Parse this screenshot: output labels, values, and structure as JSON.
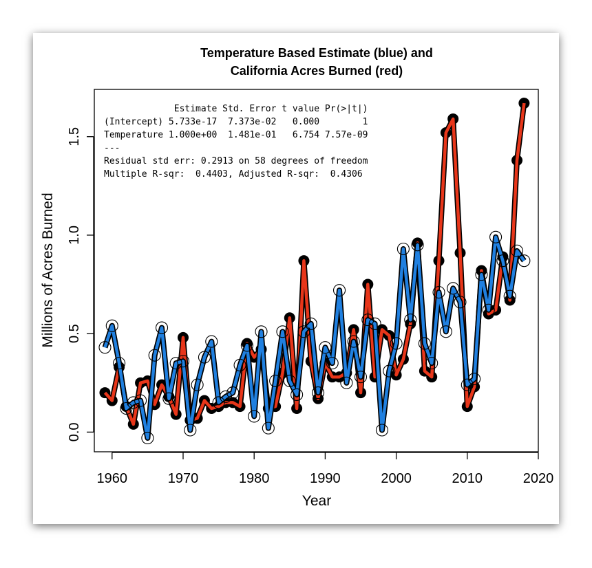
{
  "chart_data": {
    "type": "line",
    "title_lines": [
      "Temperature Based Estimate (blue) and",
      "California Acres Burned (red)"
    ],
    "xlabel": "Year",
    "ylabel": "Millions of Acres Burned",
    "xlim": [
      1957.5,
      2020
    ],
    "ylim": [
      -0.1,
      1.74
    ],
    "x_ticks": [
      1960,
      1970,
      1980,
      1990,
      2000,
      2010,
      2020
    ],
    "x_tick_labels": [
      "1960",
      "1970",
      "1980",
      "1990",
      "2000",
      "2010",
      "2020"
    ],
    "y_ticks": [
      0.0,
      0.5,
      1.0,
      1.5
    ],
    "y_tick_labels": [
      "0.0",
      "0.5",
      "1.0",
      "1.5"
    ],
    "grid": false,
    "legend": "none",
    "x": [
      1959,
      1960,
      1961,
      1962,
      1963,
      1964,
      1965,
      1966,
      1967,
      1968,
      1969,
      1970,
      1971,
      1972,
      1973,
      1974,
      1975,
      1976,
      1977,
      1978,
      1979,
      1980,
      1981,
      1982,
      1983,
      1984,
      1985,
      1986,
      1987,
      1988,
      1989,
      1990,
      1991,
      1992,
      1993,
      1994,
      1995,
      1996,
      1997,
      1998,
      1999,
      2000,
      2001,
      2002,
      2003,
      2004,
      2005,
      2006,
      2007,
      2008,
      2009,
      2010,
      2011,
      2012,
      2013,
      2014,
      2015,
      2016,
      2017,
      2018
    ],
    "series": [
      {
        "color": "#e8361a",
        "marker": "filled-circle",
        "values": [
          0.2,
          0.16,
          0.33,
          0.13,
          0.04,
          0.25,
          0.26,
          0.14,
          0.24,
          0.18,
          0.09,
          0.48,
          0.06,
          0.07,
          0.16,
          0.12,
          0.13,
          0.15,
          0.15,
          0.13,
          0.45,
          0.38,
          0.42,
          0.12,
          0.13,
          0.3,
          0.58,
          0.12,
          0.87,
          0.36,
          0.17,
          0.35,
          0.28,
          0.28,
          0.3,
          0.52,
          0.2,
          0.75,
          0.28,
          0.52,
          0.49,
          0.29,
          0.37,
          0.55,
          0.96,
          0.31,
          0.28,
          0.87,
          1.52,
          1.59,
          0.91,
          0.13,
          0.23,
          0.82,
          0.6,
          0.62,
          0.89,
          0.67,
          1.38,
          1.67
        ]
      },
      {
        "color": "#2080e0",
        "marker": "open-circle",
        "values": [
          0.43,
          0.54,
          0.35,
          0.12,
          0.15,
          0.16,
          -0.03,
          0.39,
          0.53,
          0.17,
          0.35,
          0.36,
          0.01,
          0.24,
          0.38,
          0.46,
          0.15,
          0.18,
          0.2,
          0.34,
          0.44,
          0.08,
          0.51,
          0.02,
          0.26,
          0.51,
          0.26,
          0.19,
          0.51,
          0.55,
          0.2,
          0.43,
          0.35,
          0.72,
          0.25,
          0.46,
          0.28,
          0.57,
          0.55,
          0.01,
          0.31,
          0.45,
          0.93,
          0.57,
          0.95,
          0.45,
          0.35,
          0.71,
          0.51,
          0.73,
          0.66,
          0.24,
          0.27,
          0.8,
          0.62,
          0.99,
          0.87,
          0.69,
          0.92,
          0.87
        ]
      }
    ]
  },
  "regression_table": [
    "             Estimate Std. Error t value Pr(>|t|)",
    "(Intercept) 5.733e-17  7.373e-02   0.000        1",
    "Temperature 1.000e+00  1.481e-01   6.754 7.57e-09",
    "---",
    "Residual std err: 0.2913 on 58 degrees of freedom",
    "Multiple R-sqr:  0.4403, Adjusted R-sqr:  0.4306"
  ]
}
